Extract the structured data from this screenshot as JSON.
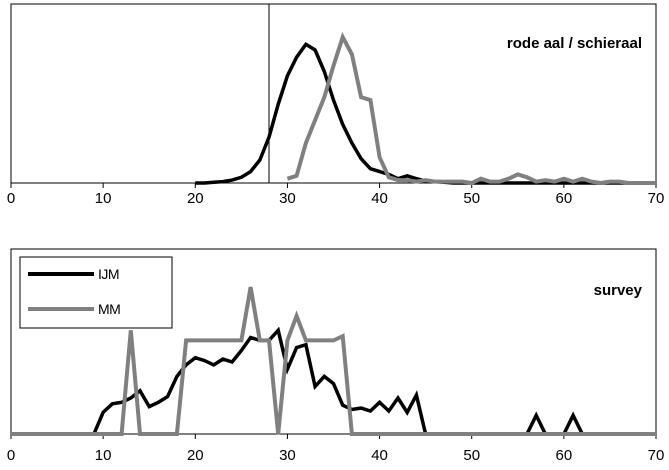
{
  "chart_data": [
    {
      "type": "line",
      "title": "rode aal / schieraal",
      "xlim": [
        0,
        70
      ],
      "xticks": [
        0,
        10,
        20,
        30,
        40,
        50,
        60,
        70
      ],
      "ylim": [
        0,
        100
      ],
      "grid": false,
      "y_tick_labels": false,
      "reference_line_x": 28,
      "series": [
        {
          "color": "#000000",
          "x": [
            20,
            21,
            22,
            23,
            24,
            25,
            26,
            27,
            28,
            29,
            30,
            31,
            32,
            33,
            34,
            35,
            36,
            37,
            38,
            39,
            40,
            41,
            42,
            43,
            44,
            45,
            46,
            47,
            48,
            49,
            50,
            51,
            52,
            53,
            54,
            55,
            56,
            57,
            58,
            59,
            60,
            61,
            62,
            63,
            64,
            65,
            66,
            67,
            68,
            69,
            70
          ],
          "values": [
            0,
            0,
            0.5,
            1,
            2,
            4,
            8,
            16,
            32,
            55,
            75,
            88,
            97,
            93,
            78,
            58,
            41,
            28,
            17,
            10,
            8,
            6,
            3,
            5,
            3,
            1.5,
            1,
            0.5,
            0,
            0,
            0,
            0,
            0,
            0,
            0,
            0,
            0,
            0,
            0,
            0,
            0,
            0,
            0,
            0,
            0,
            0,
            0,
            0,
            0,
            0,
            0
          ]
        },
        {
          "color": "#808080",
          "x": [
            30,
            31,
            32,
            33,
            34,
            35,
            36,
            37,
            38,
            39,
            40,
            41,
            42,
            43,
            44,
            45,
            46,
            47,
            48,
            49,
            50,
            51,
            52,
            53,
            54,
            55,
            56,
            57,
            58,
            59,
            60,
            61,
            62,
            63,
            64,
            65,
            66,
            67,
            68,
            69,
            70
          ],
          "values": [
            3,
            5,
            28,
            44,
            60,
            82,
            102,
            90,
            60,
            58,
            18,
            4,
            2,
            2,
            1,
            2,
            1,
            1,
            1,
            1,
            0,
            3,
            1,
            1,
            3,
            6,
            4,
            1,
            2,
            1,
            3,
            1,
            3,
            1,
            0,
            1,
            1,
            0,
            0,
            0,
            0
          ]
        }
      ]
    },
    {
      "type": "line",
      "title": "survey",
      "xlim": [
        0,
        70
      ],
      "xticks": [
        0,
        10,
        20,
        30,
        40,
        50,
        60,
        70
      ],
      "ylim": [
        0,
        100
      ],
      "grid": false,
      "y_tick_labels": false,
      "legend": "top-left",
      "series": [
        {
          "name": "IJM",
          "color": "#000000",
          "x": [
            0,
            1,
            2,
            3,
            4,
            5,
            6,
            7,
            8,
            9,
            10,
            11,
            12,
            13,
            14,
            15,
            16,
            17,
            18,
            19,
            20,
            21,
            22,
            23,
            24,
            25,
            26,
            27,
            28,
            29,
            30,
            31,
            32,
            33,
            34,
            35,
            36,
            37,
            38,
            39,
            40,
            41,
            42,
            43,
            44,
            45,
            46,
            47,
            48,
            49,
            50,
            51,
            52,
            53,
            54,
            55,
            56,
            57,
            58,
            59,
            60,
            61,
            62,
            63,
            64,
            65,
            66,
            67,
            68,
            69,
            70
          ],
          "values": [
            0,
            0,
            0,
            0,
            0,
            0,
            0,
            0,
            0,
            0,
            15,
            21,
            22,
            25,
            30,
            19,
            22,
            26,
            40,
            48,
            53,
            51,
            48,
            52,
            50,
            58,
            67,
            65,
            65,
            72,
            45,
            60,
            62,
            33,
            40,
            35,
            20,
            17,
            18,
            16,
            22,
            16,
            25,
            15,
            27,
            0,
            0,
            0,
            0,
            0,
            0,
            0,
            0,
            0,
            0,
            0,
            0,
            13,
            0,
            0,
            0,
            13,
            0,
            0,
            0,
            0,
            0,
            0,
            0,
            0,
            0
          ]
        },
        {
          "name": "MM",
          "color": "#808080",
          "x": [
            0,
            12,
            13,
            14,
            18,
            19,
            20,
            21,
            22,
            23,
            24,
            25,
            26,
            27,
            28,
            29,
            30,
            31,
            32,
            33,
            34,
            35,
            36,
            37,
            70
          ],
          "values": [
            0,
            0,
            72,
            0,
            0,
            65,
            65,
            65,
            65,
            65,
            65,
            65,
            102,
            65,
            65,
            0,
            65,
            82,
            65,
            65,
            65,
            65,
            68,
            0,
            0
          ]
        }
      ]
    }
  ]
}
